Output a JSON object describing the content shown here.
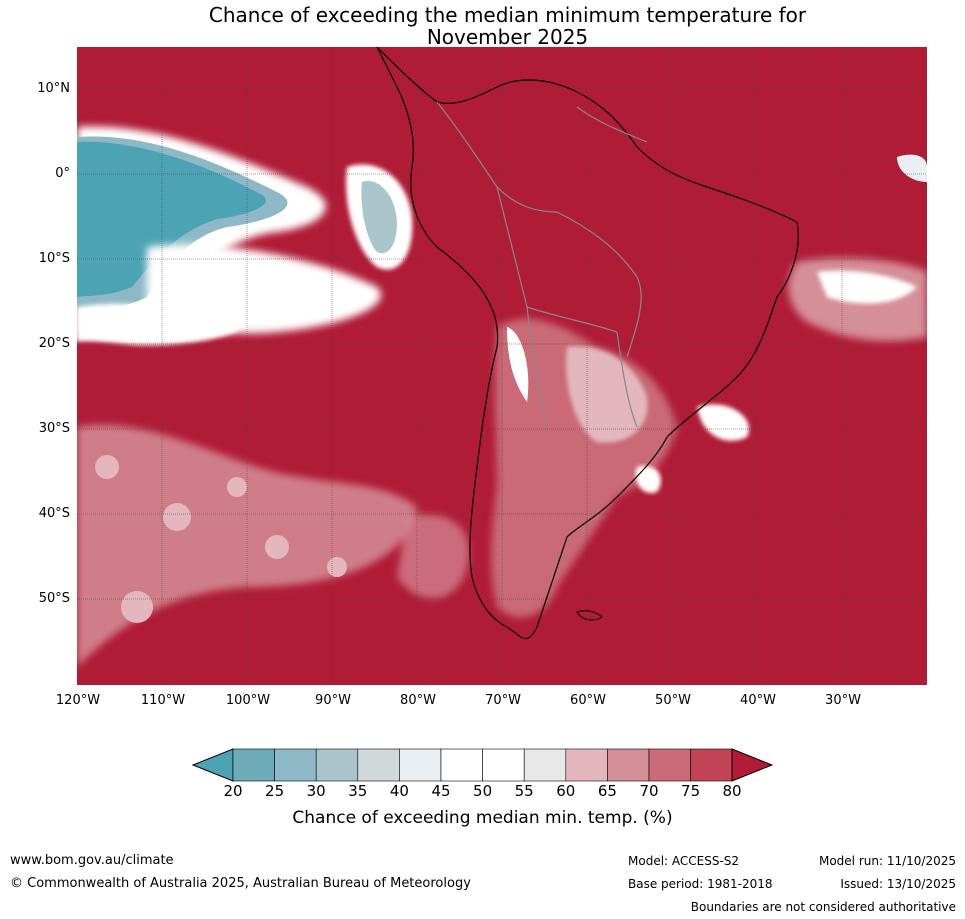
{
  "title": {
    "line1": "Chance of exceeding the median minimum temperature for",
    "line2": "November 2025"
  },
  "map": {
    "lat_labels": [
      "10°N",
      "0°",
      "10°S",
      "20°S",
      "30°S",
      "40°S",
      "50°S"
    ],
    "lat_values": [
      10,
      0,
      -10,
      -20,
      -30,
      -40,
      -50
    ],
    "lon_labels": [
      "120°W",
      "110°W",
      "100°W",
      "90°W",
      "80°W",
      "70°W",
      "60°W",
      "50°W",
      "40°W",
      "30°W"
    ],
    "lon_values": [
      -120,
      -110,
      -100,
      -90,
      -80,
      -70,
      -60,
      -50,
      -40,
      -30
    ],
    "lat_range": [
      -60,
      15
    ],
    "lon_range": [
      -120,
      -20
    ]
  },
  "colorbar": {
    "bins": [
      20,
      25,
      30,
      35,
      40,
      45,
      50,
      55,
      60,
      65,
      70,
      75,
      80
    ],
    "labels": [
      "20",
      "25",
      "30",
      "35",
      "40",
      "45",
      "50",
      "55",
      "60",
      "65",
      "70",
      "75",
      "80"
    ],
    "colors": [
      "#4ba3b4",
      "#6eabb9",
      "#8db9c6",
      "#aac5cc",
      "#d0d8da",
      "#e9eff2",
      "#ffffff",
      "#ffffff",
      "#e8e8e8",
      "#e3b7bd",
      "#d58f98",
      "#c96a76",
      "#c04455",
      "#b01b36"
    ],
    "title": "Chance of exceeding median min. temp. (%)"
  },
  "colors": {
    "dominant": "#b01b36",
    "cool": "#4ba3b4"
  },
  "footer": {
    "website": "www.bom.gov.au/climate",
    "copyright": "© Commonwealth of Australia 2025, Australian Bureau of Meteorology",
    "model": "Model: ACCESS-S2",
    "base_period": "Base period: 1981-2018",
    "model_run": "Model run: 11/10/2025",
    "issued": "Issued: 13/10/2025",
    "disclaimer": "Boundaries are not considered authoritative"
  }
}
